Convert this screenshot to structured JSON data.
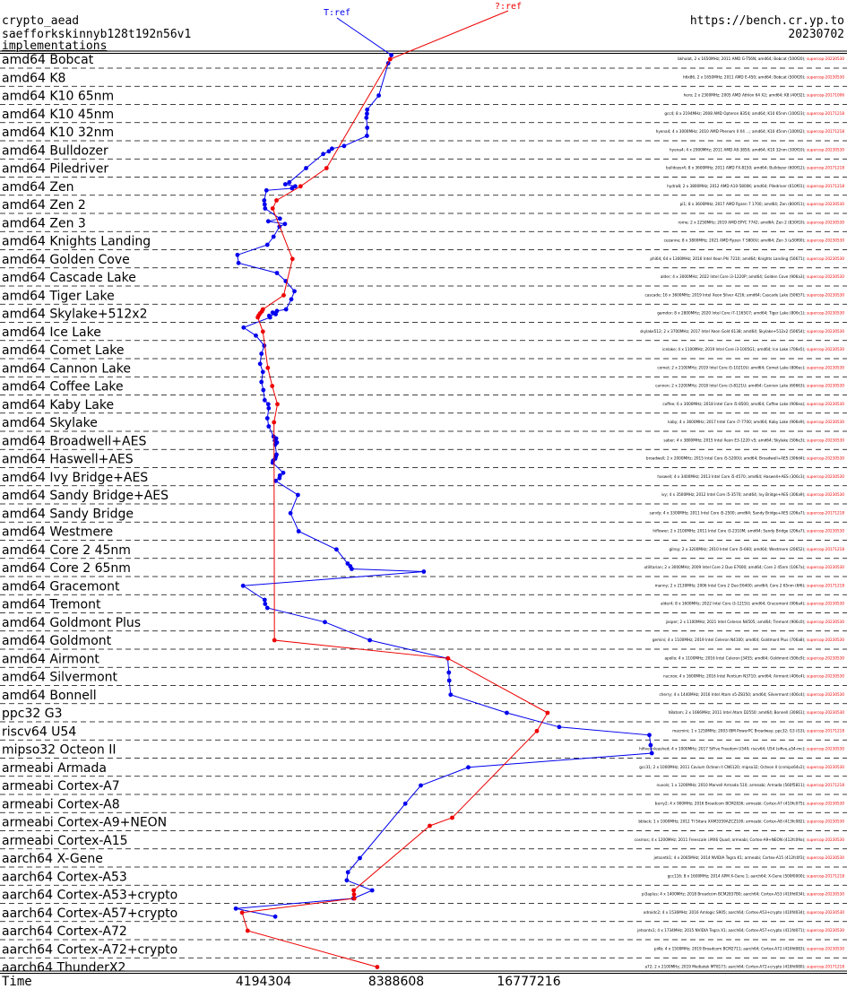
{
  "header": {
    "primitive": "crypto_aead",
    "algorithm": "saefforkskinnyb128t192n56v1",
    "implementations_link": "implementations",
    "site": "https://bench.cr.yp.to",
    "date": "20230702"
  },
  "legend": {
    "blue": "T:ref",
    "red": "?:ref"
  },
  "colors": {
    "blue": "#0000ee",
    "red": "#ee0000",
    "text": "#000000",
    "sep": "#000000"
  },
  "chart_data": {
    "type": "line",
    "xlabel": "Time",
    "x_scale": "log2",
    "x_ticks": [
      {
        "value": 4194304,
        "label": "4194304"
      },
      {
        "value": 8388608,
        "label": "8388608"
      },
      {
        "value": 16777216,
        "label": "16777216"
      }
    ],
    "categories": [
      "amd64 Bobcat",
      "amd64 K8",
      "amd64 K10 65nm",
      "amd64 K10 45nm",
      "amd64 K10 32nm",
      "amd64 Bulldozer",
      "amd64 Piledriver",
      "amd64 Zen",
      "amd64 Zen 2",
      "amd64 Zen 3",
      "amd64 Knights Landing",
      "amd64 Golden Cove",
      "amd64 Cascade Lake",
      "amd64 Tiger Lake",
      "amd64 Skylake+512x2",
      "amd64 Ice Lake",
      "amd64 Comet Lake",
      "amd64 Cannon Lake",
      "amd64 Coffee Lake",
      "amd64 Kaby Lake",
      "amd64 Skylake",
      "amd64 Broadwell+AES",
      "amd64 Haswell+AES",
      "amd64 Ivy Bridge+AES",
      "amd64 Sandy Bridge+AES",
      "amd64 Sandy Bridge",
      "amd64 Westmere",
      "amd64 Core 2 45nm",
      "amd64 Core 2 65nm",
      "amd64 Gracemont",
      "amd64 Tremont",
      "amd64 Goldmont Plus",
      "amd64 Goldmont",
      "amd64 Airmont",
      "amd64 Silvermont",
      "amd64 Bonnell",
      "ppc32 G3",
      "riscv64 U54",
      "mipso32 Octeon II",
      "armeabi Armada",
      "armeabi Cortex-A7",
      "armeabi Cortex-A8",
      "armeabi Cortex-A9+NEON",
      "armeabi Cortex-A15",
      "aarch64 X-Gene",
      "aarch64 Cortex-A53",
      "aarch64 Cortex-A53+crypto",
      "aarch64 Cortex-A57+crypto",
      "aarch64 Cortex-A72",
      "aarch64 Cortex-A72+crypto",
      "aarch64 ThunderX2"
    ],
    "series": [
      {
        "name": "T:ref",
        "color": "blue",
        "points": [
          [
            0,
            8180000
          ],
          [
            0,
            8050000
          ],
          [
            2,
            7660000
          ],
          [
            3,
            7210000
          ],
          [
            3,
            7200000
          ],
          [
            3,
            7180000
          ],
          [
            4,
            7210000
          ],
          [
            4,
            7200000
          ],
          [
            5,
            6390000
          ],
          [
            5,
            6000000
          ],
          [
            5,
            5900000
          ],
          [
            5,
            5730000
          ],
          [
            6,
            5240000
          ],
          [
            7,
            4800000
          ],
          [
            7,
            4700000
          ],
          [
            7,
            4950000
          ],
          [
            7,
            4870000
          ],
          [
            7,
            4260000
          ],
          [
            8,
            4210000
          ],
          [
            8,
            4220000
          ],
          [
            8,
            4230000
          ],
          [
            9,
            4570000
          ],
          [
            9,
            4300000
          ],
          [
            9,
            4690000
          ],
          [
            9,
            4560000
          ],
          [
            10,
            4420000
          ],
          [
            10,
            4280000
          ],
          [
            11,
            3660000
          ],
          [
            11,
            3680000
          ],
          [
            12,
            4500000
          ],
          [
            12,
            4710000
          ],
          [
            13,
            4930000
          ],
          [
            13,
            4850000
          ],
          [
            14,
            4720000
          ],
          [
            14,
            4500000
          ],
          [
            14,
            4400000
          ],
          [
            14,
            4470000
          ],
          [
            14,
            4320000
          ],
          [
            14,
            4340000
          ],
          [
            15,
            3780000
          ],
          [
            15,
            4030000
          ],
          [
            16,
            4210000
          ],
          [
            16,
            4150000
          ],
          [
            17,
            4120000
          ],
          [
            17,
            4180000
          ],
          [
            18,
            4150000
          ],
          [
            18,
            4190000
          ],
          [
            19,
            4220000
          ],
          [
            19,
            4300000
          ],
          [
            19,
            4310000
          ],
          [
            20,
            4280000
          ],
          [
            20,
            4310000
          ],
          [
            21,
            4420000
          ],
          [
            21,
            4480000
          ],
          [
            21,
            4450000
          ],
          [
            21,
            4500000
          ],
          [
            21,
            4460000
          ],
          [
            22,
            4490000
          ],
          [
            22,
            4470000
          ],
          [
            22,
            4460000
          ],
          [
            22,
            4410000
          ],
          [
            22,
            4400000
          ],
          [
            23,
            4650000
          ],
          [
            23,
            4570000
          ],
          [
            23,
            4560000
          ],
          [
            23,
            4470000
          ],
          [
            24,
            5020000
          ],
          [
            25,
            4830000
          ],
          [
            26,
            5040000
          ],
          [
            27,
            6140000
          ],
          [
            28,
            6510000
          ],
          [
            28,
            6600000
          ],
          [
            28,
            6650000
          ],
          [
            28,
            9690000
          ],
          [
            29,
            3770000
          ],
          [
            30,
            4220000
          ],
          [
            30,
            4230000
          ],
          [
            30,
            4280000
          ],
          [
            31,
            5780000
          ],
          [
            32,
            7310000
          ],
          [
            33,
            10980000
          ],
          [
            34,
            11050000
          ],
          [
            34,
            11070000
          ],
          [
            35,
            11150000
          ],
          [
            36,
            14950000
          ],
          [
            37,
            19660000
          ],
          [
            37,
            31500000
          ],
          [
            38,
            31700000
          ],
          [
            38,
            31900000
          ],
          [
            39,
            12230000
          ],
          [
            40,
            9540000
          ],
          [
            41,
            8800000
          ],
          [
            44,
            6940000
          ],
          [
            45,
            6520000
          ],
          [
            45,
            6480000
          ],
          [
            46,
            7400000
          ],
          [
            46,
            6710000
          ],
          [
            47,
            3630000
          ],
          [
            47,
            4460000
          ]
        ]
      },
      {
        "name": "?:ref",
        "color": "red",
        "points": [
          [
            0,
            8130000
          ],
          [
            6,
            5830000
          ],
          [
            7,
            5090000
          ],
          [
            8,
            4490000
          ],
          [
            8,
            4400000
          ],
          [
            11,
            4880000
          ],
          [
            13,
            4660000
          ],
          [
            14,
            4180000
          ],
          [
            14,
            4160000
          ],
          [
            14,
            4120000
          ],
          [
            14,
            4090000
          ],
          [
            14,
            4070000
          ],
          [
            15,
            4180000
          ],
          [
            17,
            4290000
          ],
          [
            18,
            4390000
          ],
          [
            19,
            4510000
          ],
          [
            20,
            4430000
          ],
          [
            32,
            4440000
          ],
          [
            33,
            11000000
          ],
          [
            36,
            18500000
          ],
          [
            37,
            17500000
          ],
          [
            42,
            11240000
          ],
          [
            42,
            10000000
          ],
          [
            46,
            6720000
          ],
          [
            46,
            6730000
          ],
          [
            46,
            6740000
          ],
          [
            47,
            3750000
          ],
          [
            48,
            3860000
          ],
          [
            50,
            7600000
          ]
        ]
      }
    ]
  },
  "row_captions": [
    {
      "text": "bkhalat, 2 x 1650MHz; 2011 AMD G-T56N; amd64; Bobcat (500f20)",
      "ref": "supercop-20230530"
    },
    {
      "text": "h6x86, 2 x 1650MHz; 2011 AMD E-450; amd64; Bobcat (500f20)",
      "ref": "supercop-20230530"
    },
    {
      "text": "hero; 2 x 2300MHz; 2005 AMD Athlon 64 X2; amd64; K8 (40f32)",
      "ref": "supercop-20171006"
    },
    {
      "text": "gcc4; 8 x 2194MHz; 2008 AMD Opteron 8354; amd64; K10 65nm (100f23)",
      "ref": "supercop-20171218"
    },
    {
      "text": "hyena4; 4 x 3000MHz; 2010 AMD Phenom II X4 ...; amd64; K10 45nm (100f42)",
      "ref": "supercop-20171218"
    },
    {
      "text": "hyena4; 4 x 2900MHz; 2011 AMD A8-3850; amd64; K10 32nm (300f10)",
      "ref": "supercop-20230530"
    },
    {
      "text": "bulldozer4; 8 x 3600MHz; 2011 AMD FX-8150; amd64; Bulldozer (600f12)",
      "ref": "supercop-20171218"
    },
    {
      "text": "hydra8; 2 x 3800MHz; 2012 AMD A10-5800K; amd64; Piledriver (610f01)",
      "ref": "supercop-20171218"
    },
    {
      "text": "pi1; 8 x 3600MHz; 2017 AMD Ryzen 7 1700; amd64; Zen (800f11)",
      "ref": "supercop-20230530"
    },
    {
      "text": "rome; 2 x 2250MHz; 2019 AMD EPYC 7742; amd64; Zen 2 (830f10)",
      "ref": "supercop-20230530"
    },
    {
      "text": "cezanne; 8 x 3800MHz; 2021 AMD Ryzen 7 5800U; amd64; Zen 3 (a50f00)",
      "ref": "supercop-20230530"
    },
    {
      "text": "phi64; 64 x 1300MHz; 2016 Intel Xeon Phi 7210; amd64; Knights Landing (50671)",
      "ref": "supercop-20230530"
    },
    {
      "text": "alder; 4 x 3000MHz; 2022 Intel Core i3-1220P; amd64; Golden Cove (906a3)",
      "ref": "supercop-20230530"
    },
    {
      "text": "cascade; 16 x 3600MHz; 2019 Intel Xeon Silver 4216; amd64; Cascade Lake (50657)",
      "ref": "supercop-20230530"
    },
    {
      "text": "gamdor; 8 x 2800MHz; 2020 Intel Core i7-1165G7; amd64; Tiger Lake (806c1)",
      "ref": "supercop-20230530"
    },
    {
      "text": "skylake512; 2 x 3700MHz; 2017 Intel Xeon Gold 6138; amd64; Skylake+512x2 (50654)",
      "ref": "supercop-20230530"
    },
    {
      "text": "icelake; 4 x 1100MHz; 2019 Intel Core i3-1005G1; amd64; Ice Lake (706e5)",
      "ref": "supercop-20230530"
    },
    {
      "text": "comet; 2 x 2100MHz; 2019 Intel Core i5-10210U; amd64; Comet Lake (806ec)",
      "ref": "supercop-20230530"
    },
    {
      "text": "cannon; 2 x 2200MHz; 2018 Intel Core i3-8121U; amd64; Cannon Lake (60663)",
      "ref": "supercop-20230530"
    },
    {
      "text": "coffee; 6 x 3000MHz; 2018 Intel Core i5-8500; amd64; Coffee Lake (906ea)",
      "ref": "supercop-20230530"
    },
    {
      "text": "kaby; 4 x 3600MHz; 2017 Intel Core i7-7700; amd64; Kaby Lake (906e9)",
      "ref": "supercop-20230530"
    },
    {
      "text": "saber; 4 x 3800MHz; 2015 Intel Xeon E3-1220 v5; amd64; Skylake (506e3)",
      "ref": "supercop-20230530"
    },
    {
      "text": "broadwell; 2 x 2000MHz; 2015 Intel Core i5-5200U; amd64; Broadwell+AES (306d4)",
      "ref": "supercop-20230530"
    },
    {
      "text": "haswell; 4 x 3400MHz; 2013 Intel Core i5-4570; amd64; Haswell+AES (306c3)",
      "ref": "supercop-20230530"
    },
    {
      "text": "ivy; 4 x 3500MHz; 2012 Intel Core i5-3570; amd64; Ivy Bridge+AES (306a9)",
      "ref": "supercop-20230530"
    },
    {
      "text": "sandy; 4 x 3300MHz; 2011 Intel Core i5-2500; amd64; Sandy Bridge+AES (206a7)",
      "ref": "supercop-20171218"
    },
    {
      "text": "hiflower; 2 x 2100MHz; 2011 Intel Core i3-2310M; amd64; Sandy Bridge (206a7)",
      "ref": "supercop-20230530"
    },
    {
      "text": "gilroy; 2 x 3200MHz; 2010 Intel Core i5-660; amd64; Westmere (20652)",
      "ref": "supercop-20171218"
    },
    {
      "text": "utilitarian; 2 x 3000MHz; 2009 Intel Core 2 Duo E7600; amd64; Core 2 45nm (1067a)",
      "ref": "supercop-20230530"
    },
    {
      "text": "manny; 2 x 2130MHz; 2006 Intel Core 2 Duo E6400; amd64; Core 2 65nm (6f6)",
      "ref": "supercop-20171218"
    },
    {
      "text": "alder4; 8 x 1600MHz; 2022 Intel Core i3-1215U; amd64; Gracemont (906a4)",
      "ref": "supercop-20230530"
    },
    {
      "text": "jasper; 2 x 1100MHz; 2021 Intel Celeron N4505; amd64; Tremont (906c0)",
      "ref": "supercop-20230530"
    },
    {
      "text": "gemini; 4 x 1100MHz; 2019 Intel Celeron N4100; amd64; Goldmont Plus (706a8)",
      "ref": "supercop-20230530"
    },
    {
      "text": "apollo; 4 x 1100MHz; 2016 Intel Celeron J3455; amd64; Goldmont (506c9)",
      "ref": "supercop-20230530"
    },
    {
      "text": "nucnox; 4 x 1600MHz; 2016 Intel Pentium N3710; amd64; Airmont (406c4)",
      "ref": "supercop-20230530"
    },
    {
      "text": "cherry; 4 x 1440MHz; 2016 Intel Atom x5-Z8350; amd64; Silvermont (406c4)",
      "ref": "supercop-20230530"
    },
    {
      "text": "h8atom; 2 x 1666MHz; 2011 Intel Atom D2550; amd64; Bonnell (30661)",
      "ref": "supercop-20230530"
    },
    {
      "text": "macmini; 1 x 1250MHz; 2003 IBM PowerPC Broadway; ppc32; G3 (G3)",
      "ref": "supercop-20171218"
    },
    {
      "text": "hifiveunleashed; 4 x 1000MHz; 2017 SiFive Freedom U540; riscv64; U54 (sifive,u54-mc)",
      "ref": "supercop-20230530"
    },
    {
      "text": "gcc31; 2 x 1000MHz; 2011 Cavium Octeon II CN6120; mipso32; Octeon II (cnmips64v2)",
      "ref": "supercop-20230530"
    },
    {
      "text": "nuvols; 1 x 1200MHz; 2010 Marvell Armada 510; armeabi; Armada (560f5811)",
      "ref": "supercop-20171218"
    },
    {
      "text": "berry2; 4 x 900MHz; 2016 Broadcom BCM2836; armeabi; Cortex-A7 (410fc075)",
      "ref": "supercop-20230530"
    },
    {
      "text": "bblack; 1 x 1000MHz; 2012 TI Sitara XAM3359AZCZ100; armeabi; Cortex-A8 (413fc082)",
      "ref": "supercop-20230530"
    },
    {
      "text": "cosmos; 4 x 1200MHz; 2011 Freescale i.MX6 Quad; armeabi; Cortex-A9+NEON (412fc09a)",
      "ref": "supercop-20230530"
    },
    {
      "text": "jetsontk1; 4 x 2065MHz; 2014 NVIDIA Tegra K1; armeabi; Cortex-A15 (412fc0f3)",
      "ref": "supercop-20230530"
    },
    {
      "text": "gcc116; 8 x 1600MHz; 2014 APM X-Gene 1; aarch64; X-Gene (500f0000)",
      "ref": "supercop-20171218"
    },
    {
      "text": "pi3aplus; 4 x 1400MHz; 2018 Broadcom BCM2837B0; aarch64; Cortex-A53 (410fd034)",
      "ref": "supercop-20230530"
    },
    {
      "text": "odroidc2; 4 x 1536MHz; 2016 Amlogic S905; aarch64; Cortex-A53+crypto (410fd034)",
      "ref": "supercop-20230530"
    },
    {
      "text": "jetsontx1; 4 x 1734MHz; 2015 NVIDIA Tegra X1; aarch64; Cortex-A57+crypto (411fd071)",
      "ref": "supercop-20230530"
    },
    {
      "text": "pi4b; 4 x 1500MHz; 2019 Broadcom BCM2711; aarch64; Cortex-A72 (410fd083)",
      "ref": "supercop-20230530"
    },
    {
      "text": "a72; 2 x 2100MHz; 2019 Mediatek MT8173; aarch64; Cortex-A72+crypto (410fd080)",
      "ref": "supercop-20171218"
    },
    {
      "text": "gcc118; 16 x 2000MHz; 2018 Cavium ThunderX2 CN9980; aarch64; ThunderX2 (431f0af1)",
      "ref": "supercop-20230530"
    }
  ]
}
